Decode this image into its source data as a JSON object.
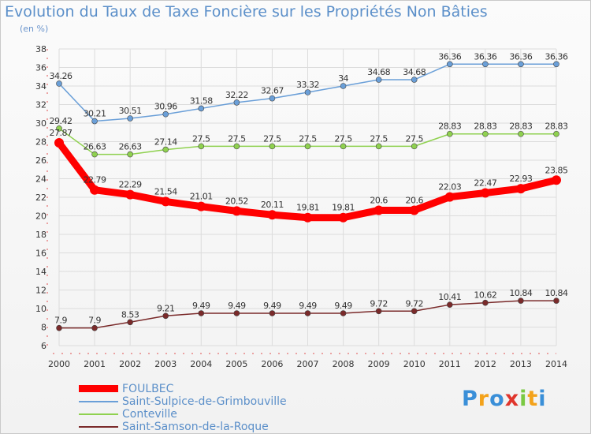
{
  "title": "Evolution du Taux de Taxe Foncière sur les Propriétés Non Bâties",
  "unit_label": "(en %)",
  "logo": {
    "letters": [
      "P",
      "r",
      "o",
      "x",
      "i",
      "t",
      "i"
    ],
    "colors": [
      "#3a8fd8",
      "#f3a21b",
      "#3a8fd8",
      "#e0352c",
      "#7ac943",
      "#f3a21b",
      "#3a8fd8"
    ]
  },
  "chart_data": {
    "type": "line",
    "title": "Evolution du Taux de Taxe Foncière sur les Propriétés Non Bâties",
    "ylabel": "(en %)",
    "xlabel": "",
    "x": [
      "2000",
      "2001",
      "2002",
      "2003",
      "2004",
      "2005",
      "2006",
      "2007",
      "2008",
      "2009",
      "2010",
      "2011",
      "2012",
      "2013",
      "2014"
    ],
    "ylim": [
      6,
      38
    ],
    "yticks": [
      "6",
      "8",
      "10",
      "12",
      "14",
      "16",
      "18",
      "20",
      "22",
      "24",
      "26",
      "28",
      "30",
      "32",
      "34",
      "36",
      "38"
    ],
    "grid": true,
    "legend_position": "bottom-left",
    "series": [
      {
        "name": "FOULBEC",
        "color": "#ff0000",
        "width": 9,
        "marker": 6,
        "labels_offset": "above",
        "values": [
          27.87,
          22.79,
          22.29,
          21.54,
          21.01,
          20.52,
          20.11,
          19.81,
          19.81,
          20.6,
          20.6,
          22.03,
          22.47,
          22.93,
          23.85
        ],
        "labels": [
          "27.87",
          "22.79",
          "22.29",
          "21.54",
          "21.01",
          "20.52",
          "20.11",
          "19.81",
          "19.81",
          "20.6",
          "20.6",
          "22.03",
          "22.47",
          "22.93",
          "23.85"
        ]
      },
      {
        "name": "Saint-Sulpice-de-Grimbouville",
        "color": "#6a9fd8",
        "width": 1.5,
        "marker": 3.5,
        "values": [
          34.26,
          30.21,
          30.51,
          30.96,
          31.58,
          32.22,
          32.67,
          33.32,
          34,
          34.68,
          34.68,
          36.36,
          36.36,
          36.36,
          36.36
        ],
        "labels": [
          "34.26",
          "30.21",
          "30.51",
          "30.96",
          "31.58",
          "32.22",
          "32.67",
          "33.32",
          "34",
          "34.68",
          "34.68",
          "36.36",
          "36.36",
          "36.36",
          "36.36"
        ]
      },
      {
        "name": "Conteville",
        "color": "#8fd14f",
        "width": 1.5,
        "marker": 3.5,
        "values": [
          29.42,
          26.63,
          26.63,
          27.14,
          27.5,
          27.5,
          27.5,
          27.5,
          27.5,
          27.5,
          27.5,
          28.83,
          28.83,
          28.83,
          28.83
        ],
        "labels": [
          "29.42",
          "26.63",
          "26.63",
          "27.14",
          "27.5",
          "27.5",
          "27.5",
          "27.5",
          "27.5",
          "27.5",
          "27.5",
          "28.83",
          "28.83",
          "28.83",
          "28.83"
        ]
      },
      {
        "name": "Saint-Samson-de-la-Roque",
        "color": "#7a2a2a",
        "width": 1.5,
        "marker": 3.5,
        "values": [
          7.9,
          7.9,
          8.53,
          9.21,
          9.49,
          9.49,
          9.49,
          9.49,
          9.49,
          9.72,
          9.72,
          10.41,
          10.62,
          10.84,
          10.84
        ],
        "labels": [
          "7.9",
          "7.9",
          "8.53",
          "9.21",
          "9.49",
          "9.49",
          "9.49",
          "9.49",
          "9.49",
          "9.72",
          "9.72",
          "10.41",
          "10.62",
          "10.84",
          "10.84"
        ]
      }
    ]
  }
}
